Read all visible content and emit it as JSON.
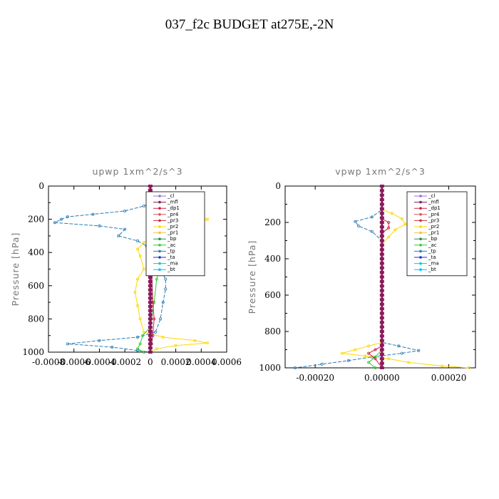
{
  "page_title": "037_f2c  BUDGET at275E,-2N",
  "colors": {
    "_cl": "#9370DB",
    "_mfl": "#8B1A5A",
    "_dp1": "#CC2244",
    "_pr4": "#E0524B",
    "_pr3": "#C83040",
    "_pr2": "#FFD700",
    "_pr1": "#F5C242",
    "_bp": "#2E8B57",
    "_ac": "#32CD32",
    "_tp": "#2A7BB5",
    "_ta": "#1F2FCC",
    "_ma": "#00CED1",
    "_bt": "#00BFFF"
  },
  "chart_data": [
    {
      "type": "line",
      "title": "upwp   1xm^2/s^3",
      "ylabel": "Pressure [hPa]",
      "xlabel": "",
      "ylim": [
        1000,
        0
      ],
      "xlim": [
        -0.0008,
        0.0006
      ],
      "x_tick_values": [
        -0.0008,
        -0.0006,
        -0.0004,
        -0.0002,
        0.0,
        0.0002,
        0.0004,
        0.0006
      ],
      "x_tick_labels": [
        "-0.0008",
        "-0.0006",
        "-0.0004",
        "-0.0002",
        "0",
        "0.0002",
        "0.0004",
        "0.0006"
      ],
      "y_ticks": [
        0,
        200,
        400,
        600,
        800,
        1000
      ],
      "legend": [
        "_cl",
        "_mfl",
        "_dp1",
        "_pr4",
        "_pr3",
        "_pr2",
        "_pr1",
        "_bp",
        "_ac",
        "_tp",
        "_ta",
        "_ma",
        "_bt"
      ],
      "legend_position": "top-right",
      "series": [
        {
          "name": "_tp",
          "points": [
            [
              0,
              0
            ],
            [
              0,
              100
            ],
            [
              -5e-05,
              120
            ],
            [
              -0.0002,
              150
            ],
            [
              -0.00045,
              170
            ],
            [
              -0.00065,
              185
            ],
            [
              -0.0007,
              200
            ],
            [
              -0.00075,
              220
            ],
            [
              -0.0004,
              240
            ],
            [
              -0.0002,
              260
            ],
            [
              -0.00025,
              300
            ],
            [
              -0.0001,
              330
            ],
            [
              -3e-05,
              360
            ],
            [
              3e-05,
              400
            ],
            [
              5e-05,
              450
            ],
            [
              8e-05,
              500
            ],
            [
              0.00012,
              560
            ],
            [
              0.00012,
              620
            ],
            [
              0.0001,
              700
            ],
            [
              8e-05,
              800
            ],
            [
              4e-05,
              880
            ],
            [
              -0.0001,
              910
            ],
            [
              -0.0004,
              930
            ],
            [
              -0.00065,
              950
            ],
            [
              -0.0003,
              970
            ],
            [
              -0.0001,
              990
            ],
            [
              0,
              1000
            ]
          ]
        },
        {
          "name": "_pr2",
          "points": [
            [
              0,
              0
            ],
            [
              0,
              100
            ],
            [
              0.00015,
              140
            ],
            [
              0.00035,
              160
            ],
            [
              0.0004,
              185
            ],
            [
              0.00045,
              200
            ],
            [
              0.0004,
              220
            ],
            [
              0.00025,
              240
            ],
            [
              0.0001,
              260
            ],
            [
              2e-05,
              300
            ],
            [
              -5e-05,
              340
            ],
            [
              -0.0001,
              380
            ],
            [
              -8e-05,
              420
            ],
            [
              -5e-05,
              500
            ],
            [
              -0.0001,
              560
            ],
            [
              -0.00012,
              640
            ],
            [
              -0.0001,
              720
            ],
            [
              -8e-05,
              800
            ],
            [
              -5e-05,
              880
            ],
            [
              0.0001,
              910
            ],
            [
              0.00035,
              930
            ],
            [
              0.00045,
              945
            ],
            [
              0.0002,
              960
            ],
            [
              5e-05,
              980
            ],
            [
              0,
              1000
            ]
          ]
        },
        {
          "name": "_ac",
          "points": [
            [
              0,
              0
            ],
            [
              0,
              200
            ],
            [
              3e-05,
              300
            ],
            [
              5e-05,
              420
            ],
            [
              8e-05,
              500
            ],
            [
              5e-05,
              560
            ],
            [
              3e-05,
              700
            ],
            [
              0,
              850
            ],
            [
              -6e-05,
              900
            ],
            [
              -8e-05,
              950
            ],
            [
              -0.0001,
              980
            ],
            [
              -5e-05,
              1000
            ]
          ]
        },
        {
          "name": "_dp1",
          "points": [
            [
              0,
              0
            ],
            [
              0,
              160
            ],
            [
              3e-05,
              180
            ],
            [
              5e-05,
              200
            ],
            [
              6e-05,
              220
            ],
            [
              4e-05,
              250
            ],
            [
              2e-05,
              300
            ],
            [
              1e-05,
              400
            ],
            [
              1e-05,
              500
            ],
            [
              2e-05,
              700
            ],
            [
              3e-05,
              800
            ],
            [
              2e-05,
              900
            ],
            [
              1e-05,
              950
            ],
            [
              0,
              1000
            ]
          ]
        },
        {
          "name": "_mfl",
          "points": [
            [
              0,
              0
            ],
            [
              0,
              1000
            ]
          ]
        }
      ]
    },
    {
      "type": "line",
      "title": "vpwp   1xm^2/s^3",
      "ylabel": "Pressure [hPa]",
      "xlabel": "",
      "ylim": [
        1000,
        0
      ],
      "xlim": [
        -0.00029,
        0.00028
      ],
      "x_tick_values": [
        -0.0002,
        0.0,
        0.0002
      ],
      "x_tick_labels": [
        "-0.00020",
        "0.00000",
        "0.00020"
      ],
      "y_ticks": [
        0,
        200,
        400,
        600,
        800,
        1000
      ],
      "legend": [
        "_cl",
        "_mfl",
        "_dp1",
        "_pr4",
        "_pr3",
        "_pr2",
        "_pr1",
        "_bp",
        "_ac",
        "_tp",
        "_ta",
        "_ma",
        "_bt"
      ],
      "legend_position": "top-right",
      "series": [
        {
          "name": "_tp",
          "points": [
            [
              0,
              0
            ],
            [
              0,
              130
            ],
            [
              -3e-05,
              170
            ],
            [
              -8e-05,
              195
            ],
            [
              -7e-05,
              220
            ],
            [
              -3e-05,
              250
            ],
            [
              0,
              300
            ],
            [
              0,
              860
            ],
            [
              5e-05,
              880
            ],
            [
              0.00011,
              905
            ],
            [
              6e-05,
              920
            ],
            [
              -3e-05,
              940
            ],
            [
              -0.0001,
              960
            ],
            [
              -0.00018,
              980
            ],
            [
              -0.00026,
              1000
            ]
          ]
        },
        {
          "name": "_pr2",
          "points": [
            [
              0,
              0
            ],
            [
              0,
              130
            ],
            [
              3e-05,
              150
            ],
            [
              6e-05,
              180
            ],
            [
              7e-05,
              210
            ],
            [
              4e-05,
              240
            ],
            [
              2e-05,
              280
            ],
            [
              0,
              320
            ],
            [
              0,
              860
            ],
            [
              -4e-05,
              880
            ],
            [
              -8e-05,
              900
            ],
            [
              -0.00012,
              920
            ],
            [
              -5e-05,
              935
            ],
            [
              2e-05,
              950
            ],
            [
              8e-05,
              970
            ],
            [
              0.00018,
              990
            ],
            [
              0.00026,
              1000
            ]
          ]
        },
        {
          "name": "_ac",
          "points": [
            [
              0,
              0
            ],
            [
              0,
              900
            ],
            [
              -2e-05,
              940
            ],
            [
              -4e-05,
              970
            ],
            [
              -2e-05,
              1000
            ]
          ]
        },
        {
          "name": "_dp1",
          "points": [
            [
              0,
              0
            ],
            [
              0,
              180
            ],
            [
              2e-05,
              200
            ],
            [
              2e-05,
              230
            ],
            [
              0,
              260
            ],
            [
              0,
              880
            ],
            [
              -2e-05,
              900
            ],
            [
              -4e-05,
              920
            ],
            [
              -2e-05,
              950
            ],
            [
              0,
              1000
            ]
          ]
        },
        {
          "name": "_mfl",
          "points": [
            [
              0,
              0
            ],
            [
              0,
              1000
            ]
          ]
        }
      ]
    }
  ]
}
